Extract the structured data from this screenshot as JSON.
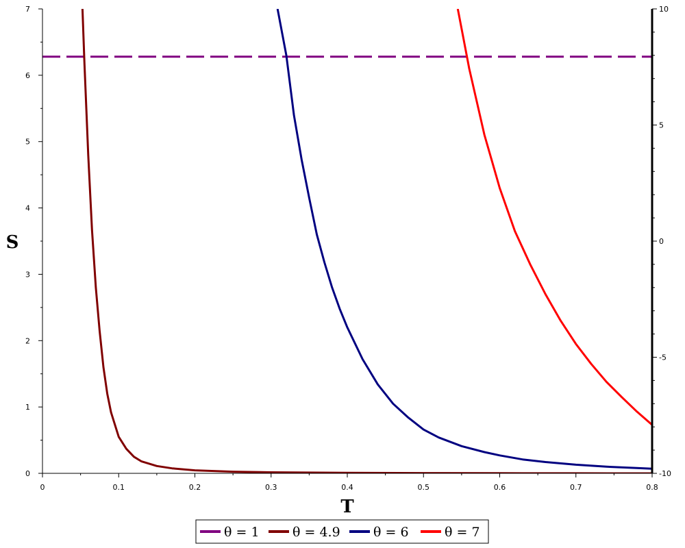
{
  "chart_data": {
    "type": "line",
    "title": "",
    "xlabel": "T",
    "ylabel": "S",
    "xlim": [
      0,
      0.8
    ],
    "ylim": [
      0,
      7
    ],
    "y2lim": [
      -10,
      10
    ],
    "x_ticks": [
      "0",
      "0.1",
      "0.2",
      "0.3",
      "0.4",
      "0.5",
      "0.6",
      "0.7",
      "0.8"
    ],
    "y_ticks": [
      "0",
      "1",
      "2",
      "3",
      "4",
      "5",
      "6",
      "7"
    ],
    "y2_ticks": [
      "10",
      "5",
      "0",
      "-5",
      "-10"
    ],
    "grid": false,
    "legend_position": "bottom",
    "series": [
      {
        "name": "θ = 1",
        "color": "#800080",
        "dash": "dashed",
        "x": [
          0.0,
          0.8
        ],
        "y": [
          6.28,
          6.28
        ]
      },
      {
        "name": "θ = 4.9",
        "color": "#800000",
        "dash": "solid",
        "x": [
          0.0525,
          0.055,
          0.0575,
          0.06,
          0.065,
          0.07,
          0.075,
          0.08,
          0.085,
          0.09,
          0.1,
          0.11,
          0.12,
          0.13,
          0.15,
          0.17,
          0.2,
          0.25,
          0.3,
          0.4,
          0.5,
          0.6,
          0.7,
          0.8
        ],
        "y": [
          7.0,
          6.2,
          5.5,
          4.8,
          3.67,
          2.8,
          2.15,
          1.6,
          1.2,
          0.92,
          0.55,
          0.37,
          0.25,
          0.18,
          0.11,
          0.075,
          0.045,
          0.025,
          0.015,
          0.008,
          0.004,
          0.002,
          0.001,
          0.0
        ]
      },
      {
        "name": "θ = 6",
        "color": "#000080",
        "dash": "solid",
        "x": [
          0.3085,
          0.32,
          0.33,
          0.34,
          0.35,
          0.36,
          0.37,
          0.38,
          0.39,
          0.4,
          0.42,
          0.44,
          0.46,
          0.48,
          0.5,
          0.52,
          0.55,
          0.58,
          0.6,
          0.63,
          0.66,
          0.7,
          0.74,
          0.78,
          0.8
        ],
        "y": [
          7.0,
          6.3,
          5.4,
          4.73,
          4.15,
          3.6,
          3.18,
          2.8,
          2.48,
          2.2,
          1.72,
          1.34,
          1.05,
          0.84,
          0.66,
          0.54,
          0.41,
          0.32,
          0.27,
          0.21,
          0.17,
          0.13,
          0.1,
          0.08,
          0.07
        ]
      },
      {
        "name": "θ = 7",
        "color": "#ff0000",
        "dash": "solid",
        "x": [
          0.545,
          0.55,
          0.56,
          0.57,
          0.58,
          0.59,
          0.6,
          0.62,
          0.64,
          0.66,
          0.68,
          0.7,
          0.72,
          0.74,
          0.76,
          0.78,
          0.8
        ],
        "y": [
          7.0,
          6.7,
          6.1,
          5.6,
          5.1,
          4.7,
          4.3,
          3.65,
          3.15,
          2.7,
          2.3,
          1.95,
          1.65,
          1.38,
          1.15,
          0.93,
          0.73
        ]
      }
    ]
  }
}
